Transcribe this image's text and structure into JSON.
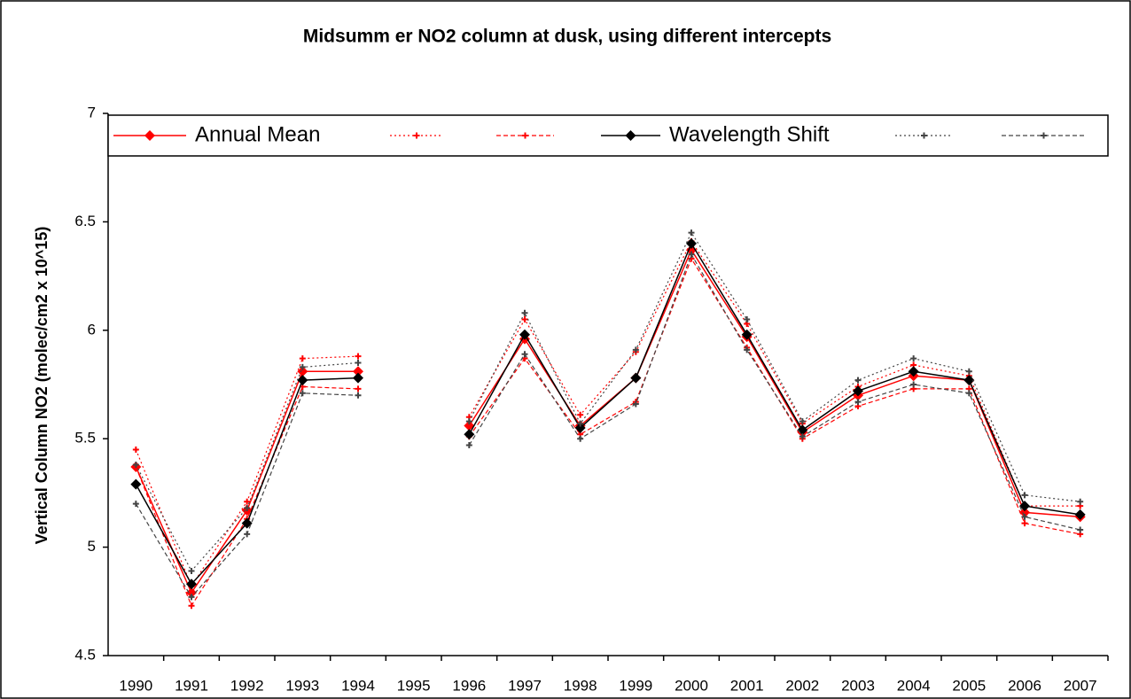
{
  "chart_data": {
    "type": "line",
    "title": "Midsumm er NO2 column at dusk, using different intercepts",
    "y_label": "Vertical Column NO2 (molec/cm2 x 10^15)",
    "categories": [
      "1990",
      "1991",
      "1992",
      "1993",
      "1994",
      "1995",
      "1996",
      "1997",
      "1998",
      "1999",
      "2000",
      "2001",
      "2002",
      "2003",
      "2004",
      "2005",
      "2006",
      "2007"
    ],
    "ylim": [
      4.5,
      7
    ],
    "yticks": [
      4.5,
      5,
      5.5,
      6,
      6.5,
      7
    ],
    "grid": false,
    "legend": "top",
    "series": [
      {
        "name": "Annual Mean",
        "color": "#ff0000",
        "style": "solid",
        "marker": "diamond",
        "values": [
          5.37,
          4.79,
          5.17,
          5.81,
          5.81,
          null,
          5.56,
          5.96,
          5.56,
          5.78,
          6.37,
          5.97,
          5.53,
          5.7,
          5.79,
          5.77,
          5.16,
          5.14
        ]
      },
      {
        "color": "#ff0000",
        "style": "dotted",
        "marker": "plus",
        "values": [
          5.45,
          4.82,
          5.21,
          5.87,
          5.88,
          null,
          5.6,
          6.05,
          5.61,
          5.9,
          6.41,
          6.03,
          5.57,
          5.74,
          5.84,
          5.79,
          5.19,
          5.19
        ]
      },
      {
        "color": "#ff0000",
        "style": "dashed",
        "marker": "plus",
        "values": [
          5.37,
          4.73,
          5.13,
          5.74,
          5.73,
          null,
          5.51,
          5.87,
          5.52,
          5.67,
          6.33,
          5.92,
          5.5,
          5.65,
          5.73,
          5.73,
          5.11,
          5.06
        ]
      },
      {
        "name": "Wavelength Shift",
        "color": "#000000",
        "style": "solid",
        "marker": "diamond",
        "values": [
          5.29,
          4.83,
          5.11,
          5.77,
          5.78,
          null,
          5.52,
          5.98,
          5.55,
          5.78,
          6.4,
          5.98,
          5.54,
          5.72,
          5.81,
          5.77,
          5.19,
          5.15
        ]
      },
      {
        "color": "#444444",
        "style": "dotted",
        "marker": "plus",
        "values": [
          5.38,
          4.89,
          5.18,
          5.83,
          5.85,
          null,
          5.58,
          6.08,
          5.57,
          5.91,
          6.45,
          6.05,
          5.58,
          5.77,
          5.87,
          5.81,
          5.24,
          5.21
        ]
      },
      {
        "color": "#444444",
        "style": "dashed",
        "marker": "plus",
        "values": [
          5.2,
          4.77,
          5.06,
          5.71,
          5.7,
          null,
          5.47,
          5.89,
          5.5,
          5.66,
          6.35,
          5.91,
          5.51,
          5.67,
          5.75,
          5.71,
          5.14,
          5.08
        ]
      }
    ]
  }
}
